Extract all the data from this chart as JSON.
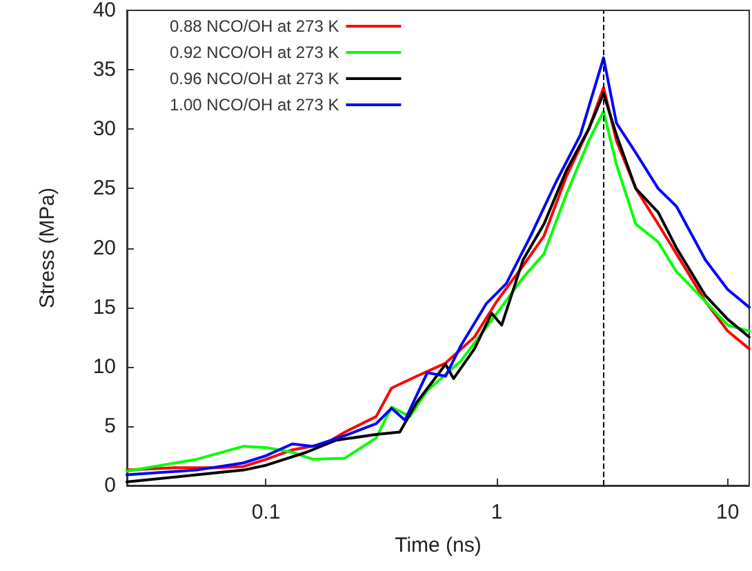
{
  "chart_data": {
    "type": "line",
    "xlabel": "Time (ns)",
    "ylabel": "Stress (MPa)",
    "log": "x",
    "xlim": [
      0.025,
      12.4
    ],
    "xticks": [
      0.1,
      1,
      10
    ],
    "ylim": [
      0,
      40
    ],
    "yticks": [
      0,
      5,
      10,
      15,
      20,
      25,
      30,
      35,
      40
    ],
    "grid": false,
    "legend": "top left",
    "marker": "none",
    "line_style": "solid",
    "ref_lines": [
      {
        "axis": "x",
        "value": 2.9,
        "label": null,
        "color": "#000000",
        "line_style": "dashed"
      }
    ],
    "series": [
      {
        "name": "0.88 NCO/OH at 273 K",
        "color": "#ff0000",
        "x": [
          0.025,
          0.04,
          0.06,
          0.08,
          0.1,
          0.13,
          0.18,
          0.22,
          0.3,
          0.35,
          0.45,
          0.6,
          0.8,
          1.0,
          1.3,
          1.6,
          2.0,
          2.5,
          2.9,
          3.3,
          4,
          5,
          6,
          8,
          10,
          12.4
        ],
        "values": [
          1.3,
          1.5,
          1.5,
          1.6,
          2.2,
          3.0,
          3.5,
          4.5,
          5.8,
          8.2,
          9.2,
          10.3,
          12.5,
          15.5,
          18.5,
          21,
          26,
          30,
          33.5,
          29,
          25,
          22,
          19.5,
          15.5,
          13,
          11.5
        ]
      },
      {
        "name": "0.92 NCO/OH at 273 K",
        "color": "#00ff00",
        "x": [
          0.025,
          0.05,
          0.08,
          0.1,
          0.13,
          0.16,
          0.22,
          0.3,
          0.35,
          0.42,
          0.5,
          0.7,
          1.0,
          1.3,
          1.6,
          2.0,
          2.5,
          2.9,
          3.3,
          4,
          5,
          6,
          8,
          10,
          12.4
        ],
        "values": [
          1.2,
          2.2,
          3.3,
          3.2,
          2.8,
          2.2,
          2.3,
          4.0,
          6.6,
          5.8,
          8.0,
          10.5,
          14.5,
          17.5,
          19.5,
          24.5,
          29,
          31.5,
          27,
          22,
          20.5,
          18,
          15.5,
          13.5,
          13
        ]
      },
      {
        "name": "0.96 NCO/OH at 273 K",
        "color": "#000000",
        "x": [
          0.025,
          0.05,
          0.08,
          0.1,
          0.15,
          0.2,
          0.3,
          0.38,
          0.45,
          0.6,
          0.65,
          0.8,
          0.95,
          1.05,
          1.3,
          1.6,
          2.0,
          2.5,
          2.9,
          3.3,
          4,
          5,
          6,
          8,
          10,
          12.4
        ],
        "values": [
          0.3,
          0.9,
          1.3,
          1.7,
          2.8,
          3.8,
          4.3,
          4.5,
          7,
          10.2,
          9,
          11.5,
          14.5,
          13.5,
          19,
          22,
          26.5,
          30,
          33,
          29.5,
          25,
          23,
          20,
          16,
          14,
          12.5
        ]
      },
      {
        "name": "1.00 NCO/OH at 273 K",
        "color": "#0000ff",
        "x": [
          0.025,
          0.05,
          0.08,
          0.1,
          0.13,
          0.16,
          0.22,
          0.3,
          0.35,
          0.4,
          0.5,
          0.6,
          0.7,
          0.9,
          1.1,
          1.4,
          1.8,
          2.3,
          2.9,
          3.3,
          4,
          5,
          6,
          8,
          10,
          12.4
        ],
        "values": [
          0.9,
          1.3,
          1.9,
          2.5,
          3.5,
          3.3,
          4.2,
          5.2,
          6.5,
          5.5,
          9.5,
          9.2,
          11.8,
          15.3,
          17,
          21,
          25.5,
          29.5,
          36,
          30.5,
          28,
          25,
          23.5,
          19,
          16.5,
          15
        ]
      }
    ]
  }
}
